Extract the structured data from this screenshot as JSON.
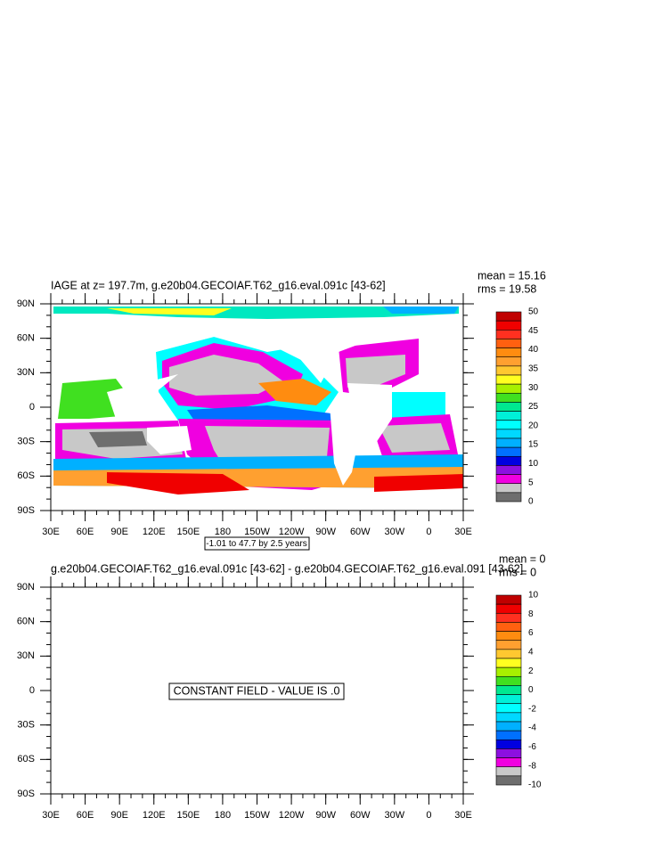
{
  "panels": [
    {
      "title": "IAGE at z= 197.7m, g.e20b04.GECOIAF.T62_g16.eval.091c [43-62]",
      "mean": "mean = 15.16",
      "rms": "rms = 19.58",
      "lat_labels": [
        "90N",
        "60N",
        "30N",
        "0",
        "30S",
        "60S",
        "90S"
      ],
      "lon_labels": [
        "30E",
        "60E",
        "90E",
        "120E",
        "150E",
        "180",
        "150W",
        "120W",
        "90W",
        "60W",
        "30W",
        "0",
        "30E"
      ],
      "contour_info": "-1.01 to 47.7 by 2.5 years",
      "colorbar": {
        "levels": [
          50,
          45,
          40,
          35,
          30,
          25,
          20,
          15,
          10,
          5,
          0
        ],
        "colors": [
          "#c00000",
          "#f00000",
          "#ff3020",
          "#ff6010",
          "#ff8c10",
          "#ffa030",
          "#ffc830",
          "#ffff20",
          "#a8f000",
          "#40e020",
          "#00e890",
          "#00f0d8",
          "#00ffff",
          "#00d8ff",
          "#00b0ff",
          "#0070ff",
          "#0000e0",
          "#8c10e0",
          "#f000e0",
          "#c8c8c8",
          "#6e6e6e"
        ]
      }
    },
    {
      "title": "g.e20b04.GECOIAF.T62_g16.eval.091c [43-62] - g.e20b04.GECOIAF.T62_g16.eval.091 [43-62]",
      "mean": "mean = 0",
      "rms": "rms = 0",
      "lat_labels": [
        "90N",
        "60N",
        "30N",
        "0",
        "30S",
        "60S",
        "90S"
      ],
      "lon_labels": [
        "30E",
        "60E",
        "90E",
        "120E",
        "150E",
        "180",
        "150W",
        "120W",
        "90W",
        "60W",
        "30W",
        "0",
        "30E"
      ],
      "note": "CONSTANT FIELD - VALUE IS .0",
      "colorbar": {
        "levels": [
          10,
          8,
          6,
          4,
          2,
          0,
          -2,
          -4,
          -6,
          -8,
          -10
        ],
        "colors": [
          "#c00000",
          "#f00000",
          "#ff3020",
          "#ff6010",
          "#ff8c10",
          "#ffa030",
          "#ffc830",
          "#ffff20",
          "#a8f000",
          "#40e020",
          "#00e890",
          "#00f0d8",
          "#00ffff",
          "#00d8ff",
          "#00b0ff",
          "#0070ff",
          "#0000e0",
          "#8c10e0",
          "#f000e0",
          "#c8c8c8",
          "#6e6e6e"
        ]
      }
    }
  ]
}
